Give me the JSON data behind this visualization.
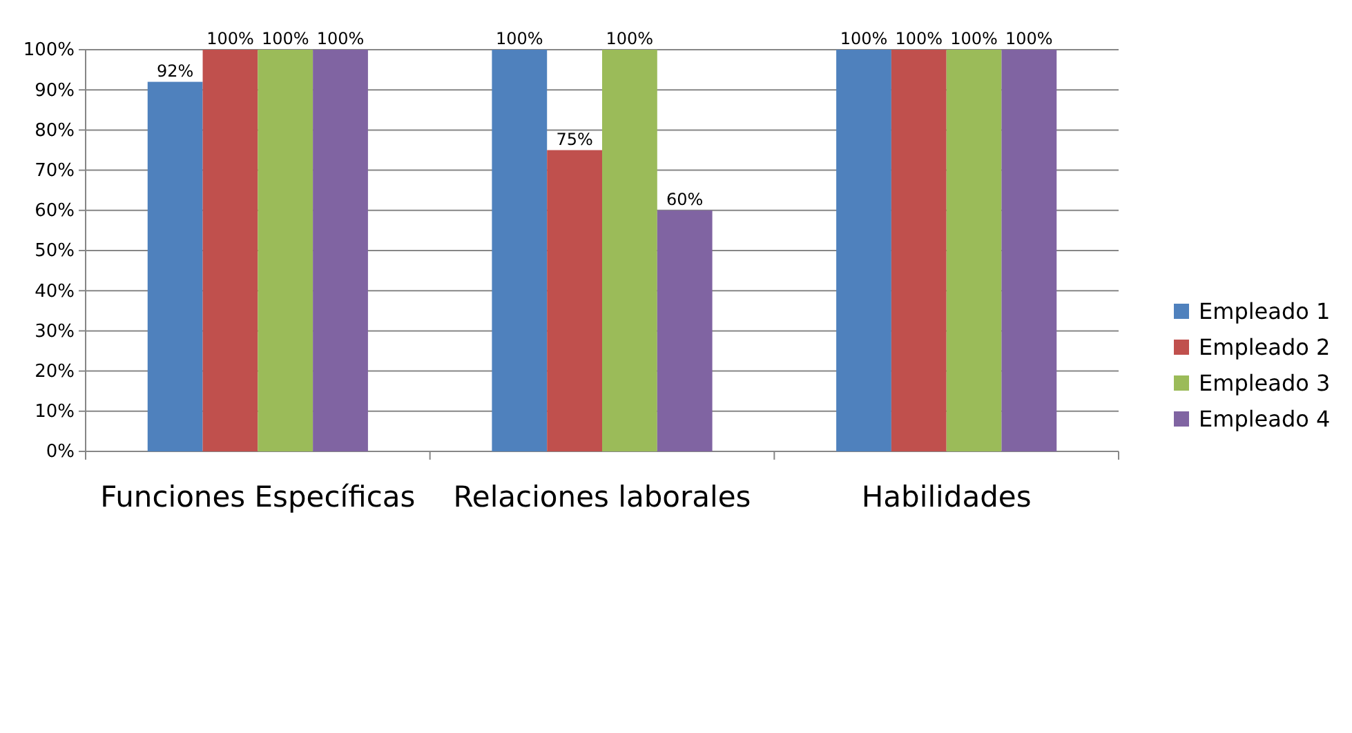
{
  "chart_data": {
    "type": "bar",
    "categories": [
      "Funciones Específicas",
      "Relaciones laborales",
      "Habilidades"
    ],
    "series": [
      {
        "name": "Empleado 1",
        "color": "#4f81bd",
        "values": [
          92,
          100,
          100
        ],
        "value_labels": [
          "92%",
          "100%",
          "100%"
        ]
      },
      {
        "name": "Empleado 2",
        "color": "#c0504d",
        "values": [
          100,
          75,
          100
        ],
        "value_labels": [
          "100%",
          "75%",
          "100%"
        ]
      },
      {
        "name": "Empleado 3",
        "color": "#9bbb59",
        "values": [
          100,
          100,
          100
        ],
        "value_labels": [
          "100%",
          "100%",
          "100%"
        ]
      },
      {
        "name": "Empleado 4",
        "color": "#8064a2",
        "values": [
          100,
          60,
          100
        ],
        "value_labels": [
          "100%",
          "60%",
          "100%"
        ]
      }
    ],
    "ylim": [
      0,
      100
    ],
    "yticks": [
      {
        "value": 0,
        "label": "0%"
      },
      {
        "value": 10,
        "label": "10%"
      },
      {
        "value": 20,
        "label": "20%"
      },
      {
        "value": 30,
        "label": "30%"
      },
      {
        "value": 40,
        "label": "40%"
      },
      {
        "value": 50,
        "label": "50%"
      },
      {
        "value": 60,
        "label": "60%"
      },
      {
        "value": 70,
        "label": "70%"
      },
      {
        "value": 80,
        "label": "80%"
      },
      {
        "value": 90,
        "label": "90%"
      },
      {
        "value": 100,
        "label": "100%"
      }
    ],
    "grid": "y",
    "legend": "right"
  }
}
